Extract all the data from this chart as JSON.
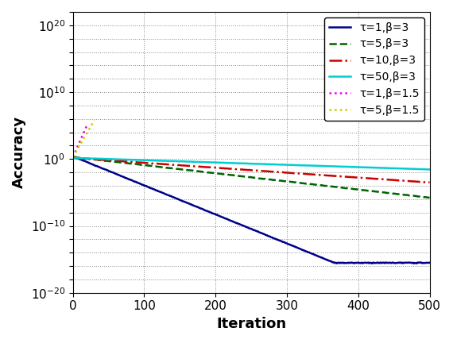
{
  "title": "",
  "xlabel": "Iteration",
  "ylabel": "Accuracy",
  "xlim": [
    0,
    500
  ],
  "ylim_bottom": 1e-20,
  "ylim_top": 1e+22,
  "n_iter": 500,
  "series": [
    {
      "label": "τ=1,β=3",
      "color": "#00008B",
      "linestyle": "solid",
      "linewidth": 1.8,
      "start": 2.5,
      "decay": 0.1,
      "floor": 3e-16,
      "floor_iter": 65,
      "noise": 0.5,
      "diverge": false
    },
    {
      "label": "τ=5,β=3",
      "color": "#006400",
      "linestyle": "dashed",
      "linewidth": 1.8,
      "start": 2.0,
      "decay": 0.028,
      "floor": 3e-16,
      "floor_iter": 295,
      "noise": 0.4,
      "diverge": false
    },
    {
      "label": "τ=10,β=3",
      "color": "#CC0000",
      "linestyle": "dashdot",
      "linewidth": 1.8,
      "start": 1.5,
      "decay": 0.017,
      "floor": 3e-16,
      "floor_iter": 600,
      "noise": 0.25,
      "diverge": false
    },
    {
      "label": "τ=50,β=3",
      "color": "#00CED1",
      "linestyle": "solid",
      "linewidth": 1.8,
      "start": 1.5,
      "decay": 0.008,
      "floor": 8e-11,
      "floor_iter": 600,
      "noise": 0.2,
      "diverge": false
    },
    {
      "label": "τ=1,β=1.5",
      "color": "#EE00EE",
      "linestyle": "dotted",
      "linewidth": 1.8,
      "start": 2.0,
      "decay": 0.55,
      "floor": null,
      "floor_iter": 20,
      "noise": 0.3,
      "diverge": true
    },
    {
      "label": "τ=5,β=1.5",
      "color": "#CCCC00",
      "linestyle": "dotted",
      "linewidth": 1.8,
      "start": 2.0,
      "decay": 0.42,
      "floor": null,
      "floor_iter": 30,
      "noise": 0.3,
      "diverge": true
    }
  ],
  "legend_fontsize": 10,
  "axis_fontsize": 13,
  "tick_fontsize": 11,
  "background_color": "#ffffff",
  "grid_color": "#888888"
}
